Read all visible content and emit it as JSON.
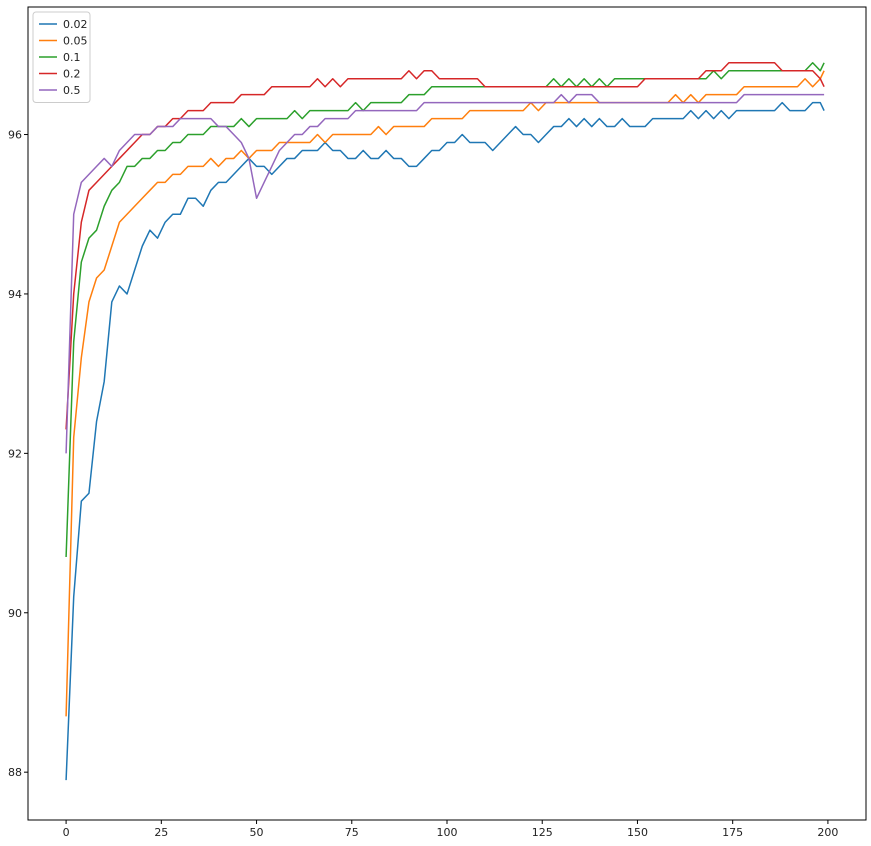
{
  "chart_data": {
    "type": "line",
    "title": "",
    "xlabel": "",
    "ylabel": "",
    "xlim": [
      -10,
      210
    ],
    "ylim": [
      87.4,
      97.6
    ],
    "xticks": [
      0,
      25,
      50,
      75,
      100,
      125,
      150,
      175,
      200
    ],
    "yticks": [
      88,
      90,
      92,
      94,
      96
    ],
    "grid": false,
    "legend": "upper left",
    "x": [
      0,
      2,
      4,
      6,
      8,
      10,
      12,
      14,
      16,
      18,
      20,
      22,
      24,
      26,
      28,
      30,
      32,
      34,
      36,
      38,
      40,
      42,
      44,
      46,
      48,
      50,
      52,
      54,
      56,
      58,
      60,
      62,
      64,
      66,
      68,
      70,
      72,
      74,
      76,
      78,
      80,
      82,
      84,
      86,
      88,
      90,
      92,
      94,
      96,
      98,
      100,
      102,
      104,
      106,
      108,
      110,
      112,
      114,
      116,
      118,
      120,
      122,
      124,
      126,
      128,
      130,
      132,
      134,
      136,
      138,
      140,
      142,
      144,
      146,
      148,
      150,
      152,
      154,
      156,
      158,
      160,
      162,
      164,
      166,
      168,
      170,
      172,
      174,
      176,
      178,
      180,
      182,
      184,
      186,
      188,
      190,
      192,
      194,
      196,
      198,
      199
    ],
    "series": [
      {
        "name": "0.02",
        "color": "#1f77b4",
        "values": [
          87.9,
          90.2,
          91.4,
          91.5,
          92.4,
          92.9,
          93.9,
          94.1,
          94.0,
          94.3,
          94.6,
          94.8,
          94.7,
          94.9,
          95.0,
          95.0,
          95.2,
          95.2,
          95.1,
          95.3,
          95.4,
          95.4,
          95.5,
          95.6,
          95.7,
          95.6,
          95.6,
          95.5,
          95.6,
          95.7,
          95.7,
          95.8,
          95.8,
          95.8,
          95.9,
          95.8,
          95.8,
          95.7,
          95.7,
          95.8,
          95.7,
          95.7,
          95.8,
          95.7,
          95.7,
          95.6,
          95.6,
          95.7,
          95.8,
          95.8,
          95.9,
          95.9,
          96.0,
          95.9,
          95.9,
          95.9,
          95.8,
          95.9,
          96.0,
          96.1,
          96.0,
          96.0,
          95.9,
          96.0,
          96.1,
          96.1,
          96.2,
          96.1,
          96.2,
          96.1,
          96.2,
          96.1,
          96.1,
          96.2,
          96.1,
          96.1,
          96.1,
          96.2,
          96.2,
          96.2,
          96.2,
          96.2,
          96.3,
          96.2,
          96.3,
          96.2,
          96.3,
          96.2,
          96.3,
          96.3,
          96.3,
          96.3,
          96.3,
          96.3,
          96.4,
          96.3,
          96.3,
          96.3,
          96.4,
          96.4,
          96.3
        ]
      },
      {
        "name": "0.05",
        "color": "#ff7f0e",
        "values": [
          88.7,
          92.2,
          93.2,
          93.9,
          94.2,
          94.3,
          94.6,
          94.9,
          95.0,
          95.1,
          95.2,
          95.3,
          95.4,
          95.4,
          95.5,
          95.5,
          95.6,
          95.6,
          95.6,
          95.7,
          95.6,
          95.7,
          95.7,
          95.8,
          95.7,
          95.8,
          95.8,
          95.8,
          95.9,
          95.9,
          95.9,
          95.9,
          95.9,
          96.0,
          95.9,
          96.0,
          96.0,
          96.0,
          96.0,
          96.0,
          96.0,
          96.1,
          96.0,
          96.1,
          96.1,
          96.1,
          96.1,
          96.1,
          96.2,
          96.2,
          96.2,
          96.2,
          96.2,
          96.3,
          96.3,
          96.3,
          96.3,
          96.3,
          96.3,
          96.3,
          96.3,
          96.4,
          96.3,
          96.4,
          96.4,
          96.4,
          96.4,
          96.4,
          96.4,
          96.4,
          96.4,
          96.4,
          96.4,
          96.4,
          96.4,
          96.4,
          96.4,
          96.4,
          96.4,
          96.4,
          96.5,
          96.4,
          96.5,
          96.4,
          96.5,
          96.5,
          96.5,
          96.5,
          96.5,
          96.6,
          96.6,
          96.6,
          96.6,
          96.6,
          96.6,
          96.6,
          96.6,
          96.7,
          96.6,
          96.7,
          96.8
        ]
      },
      {
        "name": "0.1",
        "color": "#2ca02c",
        "values": [
          90.7,
          93.4,
          94.4,
          94.7,
          94.8,
          95.1,
          95.3,
          95.4,
          95.6,
          95.6,
          95.7,
          95.7,
          95.8,
          95.8,
          95.9,
          95.9,
          96.0,
          96.0,
          96.0,
          96.1,
          96.1,
          96.1,
          96.1,
          96.2,
          96.1,
          96.2,
          96.2,
          96.2,
          96.2,
          96.2,
          96.3,
          96.2,
          96.3,
          96.3,
          96.3,
          96.3,
          96.3,
          96.3,
          96.4,
          96.3,
          96.4,
          96.4,
          96.4,
          96.4,
          96.4,
          96.5,
          96.5,
          96.5,
          96.6,
          96.6,
          96.6,
          96.6,
          96.6,
          96.6,
          96.6,
          96.6,
          96.6,
          96.6,
          96.6,
          96.6,
          96.6,
          96.6,
          96.6,
          96.6,
          96.7,
          96.6,
          96.7,
          96.6,
          96.7,
          96.6,
          96.7,
          96.6,
          96.7,
          96.7,
          96.7,
          96.7,
          96.7,
          96.7,
          96.7,
          96.7,
          96.7,
          96.7,
          96.7,
          96.7,
          96.7,
          96.8,
          96.7,
          96.8,
          96.8,
          96.8,
          96.8,
          96.8,
          96.8,
          96.8,
          96.8,
          96.8,
          96.8,
          96.8,
          96.9,
          96.8,
          96.9
        ]
      },
      {
        "name": "0.2",
        "color": "#d62728",
        "values": [
          92.3,
          94.0,
          94.9,
          95.3,
          95.4,
          95.5,
          95.6,
          95.7,
          95.8,
          95.9,
          96.0,
          96.0,
          96.1,
          96.1,
          96.2,
          96.2,
          96.3,
          96.3,
          96.3,
          96.4,
          96.4,
          96.4,
          96.4,
          96.5,
          96.5,
          96.5,
          96.5,
          96.6,
          96.6,
          96.6,
          96.6,
          96.6,
          96.6,
          96.7,
          96.6,
          96.7,
          96.6,
          96.7,
          96.7,
          96.7,
          96.7,
          96.7,
          96.7,
          96.7,
          96.7,
          96.8,
          96.7,
          96.8,
          96.8,
          96.7,
          96.7,
          96.7,
          96.7,
          96.7,
          96.7,
          96.6,
          96.6,
          96.6,
          96.6,
          96.6,
          96.6,
          96.6,
          96.6,
          96.6,
          96.6,
          96.6,
          96.6,
          96.6,
          96.6,
          96.6,
          96.6,
          96.6,
          96.6,
          96.6,
          96.6,
          96.6,
          96.7,
          96.7,
          96.7,
          96.7,
          96.7,
          96.7,
          96.7,
          96.7,
          96.8,
          96.8,
          96.8,
          96.9,
          96.9,
          96.9,
          96.9,
          96.9,
          96.9,
          96.9,
          96.8,
          96.8,
          96.8,
          96.8,
          96.8,
          96.7,
          96.6
        ]
      },
      {
        "name": "0.5",
        "color": "#9467bd",
        "values": [
          92.0,
          95.0,
          95.4,
          95.5,
          95.6,
          95.7,
          95.6,
          95.8,
          95.9,
          96.0,
          96.0,
          96.0,
          96.1,
          96.1,
          96.1,
          96.2,
          96.2,
          96.2,
          96.2,
          96.2,
          96.1,
          96.1,
          96.0,
          95.9,
          95.7,
          95.2,
          95.4,
          95.6,
          95.8,
          95.9,
          96.0,
          96.0,
          96.1,
          96.1,
          96.2,
          96.2,
          96.2,
          96.2,
          96.3,
          96.3,
          96.3,
          96.3,
          96.3,
          96.3,
          96.3,
          96.3,
          96.3,
          96.4,
          96.4,
          96.4,
          96.4,
          96.4,
          96.4,
          96.4,
          96.4,
          96.4,
          96.4,
          96.4,
          96.4,
          96.4,
          96.4,
          96.4,
          96.4,
          96.4,
          96.4,
          96.5,
          96.4,
          96.5,
          96.5,
          96.5,
          96.4,
          96.4,
          96.4,
          96.4,
          96.4,
          96.4,
          96.4,
          96.4,
          96.4,
          96.4,
          96.4,
          96.4,
          96.4,
          96.4,
          96.4,
          96.4,
          96.4,
          96.4,
          96.4,
          96.5,
          96.5,
          96.5,
          96.5,
          96.5,
          96.5,
          96.5,
          96.5,
          96.5,
          96.5,
          96.5,
          96.5
        ]
      }
    ]
  }
}
